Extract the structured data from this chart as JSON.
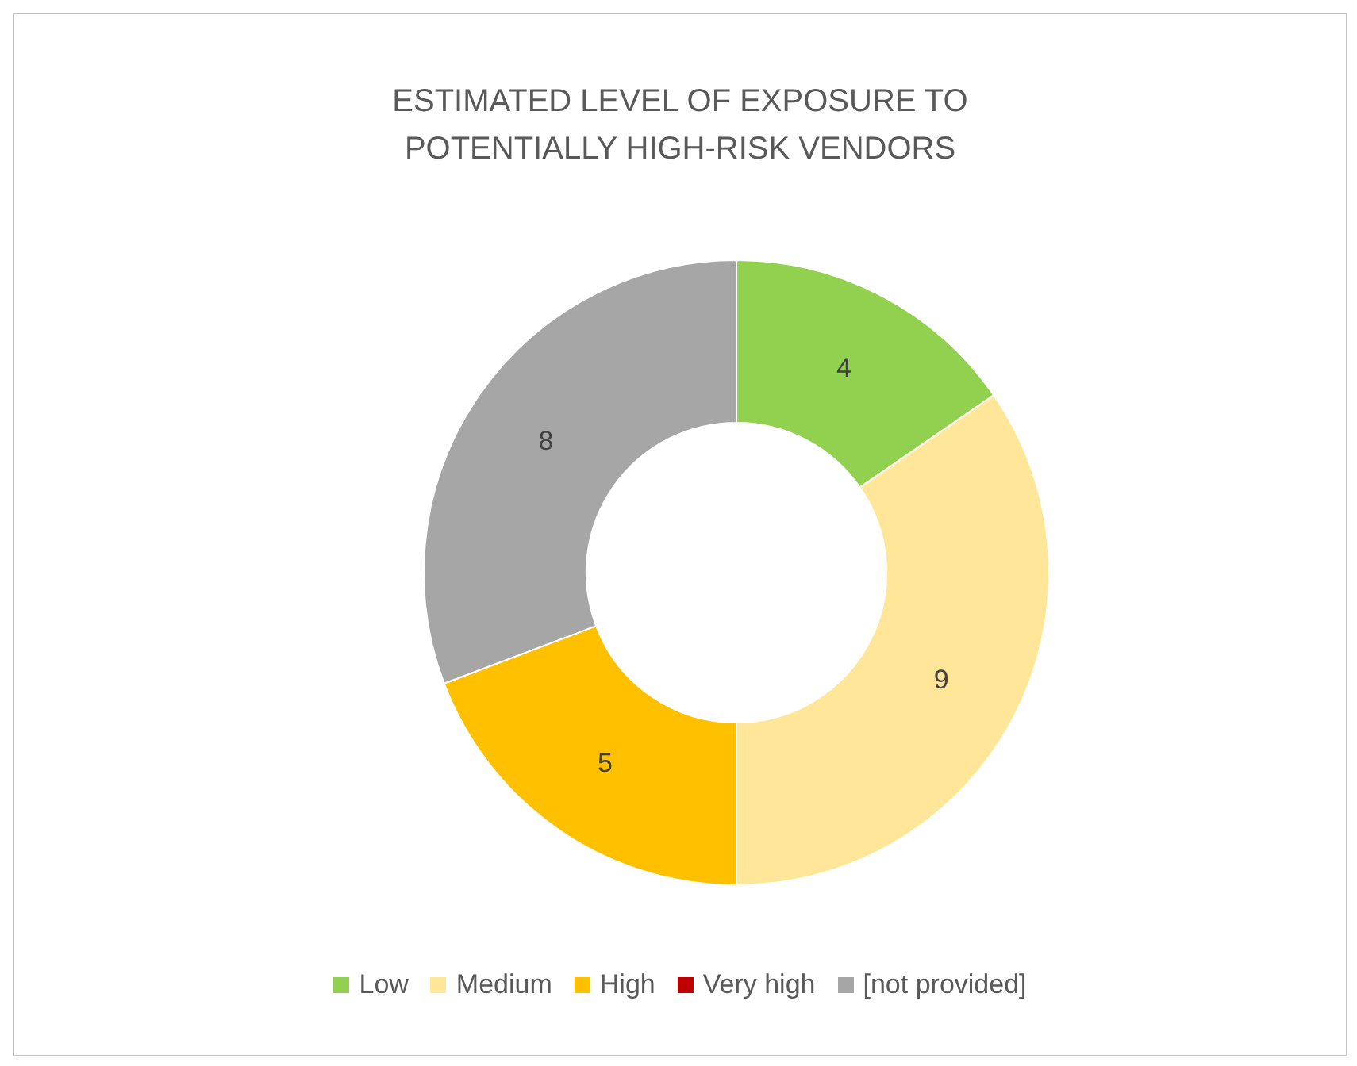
{
  "chart_data": {
    "type": "donut",
    "title": "ESTIMATED LEVEL OF EXPOSURE TO POTENTIALLY HIGH-RISK VENDORS",
    "categories": [
      "Low",
      "Medium",
      "High",
      "Very high",
      "[not provided]"
    ],
    "values": [
      4,
      9,
      5,
      0,
      8
    ],
    "colors": [
      "#92d050",
      "#ffe699",
      "#ffc000",
      "#c00000",
      "#a6a6a6"
    ],
    "value_labels": [
      "4",
      "9",
      "5",
      null,
      "8"
    ],
    "legend": "bottom"
  }
}
